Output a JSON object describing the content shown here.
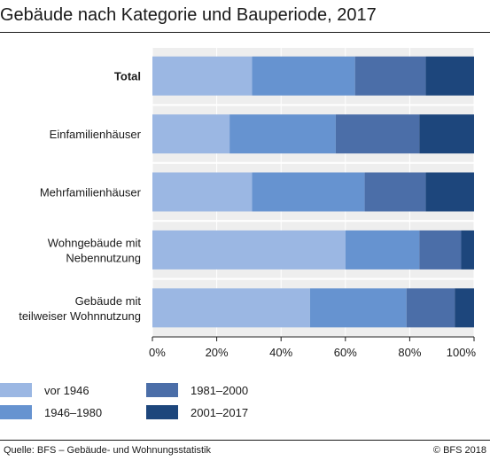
{
  "header": {
    "title": "Gebäude nach Kategorie und Bauperiode, 2017"
  },
  "chart_data": {
    "type": "bar",
    "orientation": "horizontal",
    "stacked": true,
    "categories": [
      "Total",
      "Einfamilienhäuser",
      "Mehrfamilienhäuser",
      "Wohngebäude mit\nNebennutzung",
      "Gebäude mit\nteilweiser Wohnnutzung"
    ],
    "bold_categories": [
      "Total"
    ],
    "series": [
      {
        "name": "vor 1946",
        "color": "#9bb7e3",
        "values": [
          31,
          24,
          31,
          60,
          49
        ]
      },
      {
        "name": "1946–1980",
        "color": "#6693d0",
        "values": [
          32,
          33,
          35,
          23,
          30
        ]
      },
      {
        "name": "1981–2000",
        "color": "#4b6ea8",
        "values": [
          22,
          26,
          19,
          13,
          15
        ]
      },
      {
        "name": "2001–2017",
        "color": "#1d467c",
        "values": [
          15,
          17,
          15,
          4,
          6
        ]
      }
    ],
    "xlim": [
      0,
      100
    ],
    "xticks": [
      "0%",
      "20%",
      "40%",
      "60%",
      "80%",
      "100%"
    ],
    "grid": "background-bands",
    "legend_position": "bottom-left"
  },
  "footer": {
    "source": "Quelle: BFS – Gebäude- und Wohnungsstatistik",
    "copyright": "© BFS 2018"
  }
}
